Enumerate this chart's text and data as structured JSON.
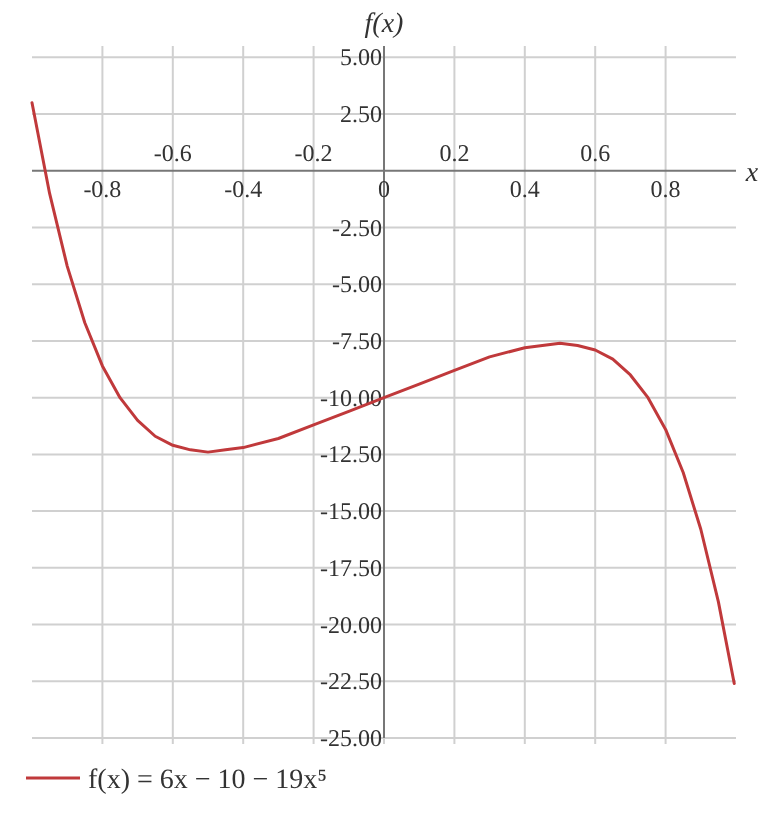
{
  "chart_data": {
    "type": "line",
    "xlabel": "x",
    "ylabel": "f(x)",
    "xlim": [
      -1,
      1
    ],
    "ylim": [
      -25,
      5.5
    ],
    "xticks": [
      -0.8,
      -0.4,
      0,
      0.4,
      0.8
    ],
    "x2lim": [
      -1,
      1
    ],
    "x2ticks": [
      -0.6,
      -0.2,
      0.2,
      0.6
    ],
    "yticks": [
      {
        "value": 5,
        "label": "5.00"
      },
      {
        "value": 2.5,
        "label": "2.50"
      },
      {
        "value": -2.5,
        "label": "-2.50"
      },
      {
        "value": -5,
        "label": "-5.00"
      },
      {
        "value": -7.5,
        "label": "-7.50"
      },
      {
        "value": -10,
        "label": "-10.00"
      },
      {
        "value": -12.5,
        "label": "-12.50"
      },
      {
        "value": -15,
        "label": "-15.00"
      },
      {
        "value": -17.5,
        "label": "-17.50"
      },
      {
        "value": -20,
        "label": "-20.00"
      },
      {
        "value": -22.5,
        "label": "-22.50"
      },
      {
        "value": -25,
        "label": "-25.00"
      }
    ],
    "grid": true,
    "legend": "bottom left",
    "marker": "none",
    "line_style": "solid",
    "x": [
      -1,
      -0.95,
      -0.9,
      -0.85,
      -0.8,
      -0.75,
      -0.7,
      -0.65,
      -0.6,
      -0.55,
      -0.5,
      -0.45,
      -0.4,
      -0.3,
      -0.2,
      -0.1,
      0,
      0.1,
      0.2,
      0.3,
      0.4,
      0.45,
      0.5,
      0.55,
      0.6,
      0.65,
      0.7,
      0.75,
      0.8,
      0.85,
      0.9,
      0.95,
      0.995
    ],
    "series": [
      {
        "name": "f(x) = 6x − 10 − 19x⁵",
        "color": "#c0393b",
        "values": [
          3,
          -1.0,
          -4.2,
          -6.7,
          -8.6,
          -10.0,
          -11.0,
          -11.7,
          -12.1,
          -12.3,
          -12.4,
          -12.3,
          -12.2,
          -11.8,
          -11.2,
          -10.6,
          -10,
          -9.4,
          -8.8,
          -8.2,
          -7.8,
          -7.7,
          -7.6,
          -7.7,
          -7.9,
          -8.3,
          -9.0,
          -10.0,
          -11.4,
          -13.3,
          -15.8,
          -19.0,
          -22.6
        ]
      }
    ]
  }
}
